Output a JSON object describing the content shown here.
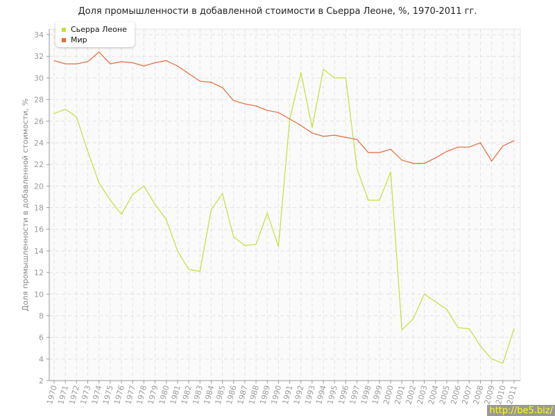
{
  "chart_data": {
    "type": "line",
    "title": "Доля промышленности в добавленной стоимости в Сьерра Леоне, %, 1970-2011 гг.",
    "xlabel": "",
    "ylabel": "Доля промышленности в добавленной стоимости, %",
    "ylim": [
      2,
      34
    ],
    "yticks": [
      2,
      4,
      6,
      8,
      10,
      12,
      14,
      16,
      18,
      20,
      22,
      24,
      26,
      28,
      30,
      32,
      34
    ],
    "grid": true,
    "legend_position": "top-left",
    "x": [
      1970,
      1971,
      1972,
      1973,
      1974,
      1975,
      1976,
      1977,
      1978,
      1979,
      1980,
      1981,
      1982,
      1983,
      1984,
      1985,
      1986,
      1987,
      1988,
      1989,
      1990,
      1991,
      1992,
      1993,
      1994,
      1995,
      1996,
      1997,
      1998,
      1999,
      2000,
      2001,
      2002,
      2003,
      2004,
      2005,
      2006,
      2007,
      2008,
      2009,
      2010,
      2011
    ],
    "series": [
      {
        "name": "Сьерра Леоне",
        "color": "#c3e03a",
        "values": [
          26.7,
          27.1,
          26.4,
          23.2,
          20.3,
          18.7,
          17.4,
          19.2,
          20.0,
          18.3,
          16.9,
          14.0,
          12.3,
          12.1,
          17.8,
          19.3,
          15.3,
          14.5,
          14.6,
          17.5,
          14.4,
          26.2,
          30.5,
          25.4,
          30.8,
          30.0,
          30.0,
          21.6,
          18.7,
          18.7,
          21.3,
          6.7,
          7.7,
          10.0,
          9.3,
          8.6,
          6.9,
          6.8,
          5.2,
          4.0,
          3.6,
          6.8
        ]
      },
      {
        "name": "Мир",
        "color": "#e8683a",
        "values": [
          31.6,
          31.3,
          31.3,
          31.5,
          32.4,
          31.3,
          31.5,
          31.4,
          31.1,
          31.4,
          31.6,
          31.1,
          30.4,
          29.7,
          29.6,
          29.1,
          27.9,
          27.6,
          27.4,
          27.0,
          26.8,
          26.2,
          25.6,
          24.9,
          24.6,
          24.7,
          24.5,
          24.3,
          23.1,
          23.1,
          23.4,
          22.4,
          22.1,
          22.1,
          22.6,
          23.2,
          23.6,
          23.6,
          24.0,
          22.3,
          23.7,
          24.2
        ]
      }
    ]
  },
  "watermark": "http://be5.biz/"
}
